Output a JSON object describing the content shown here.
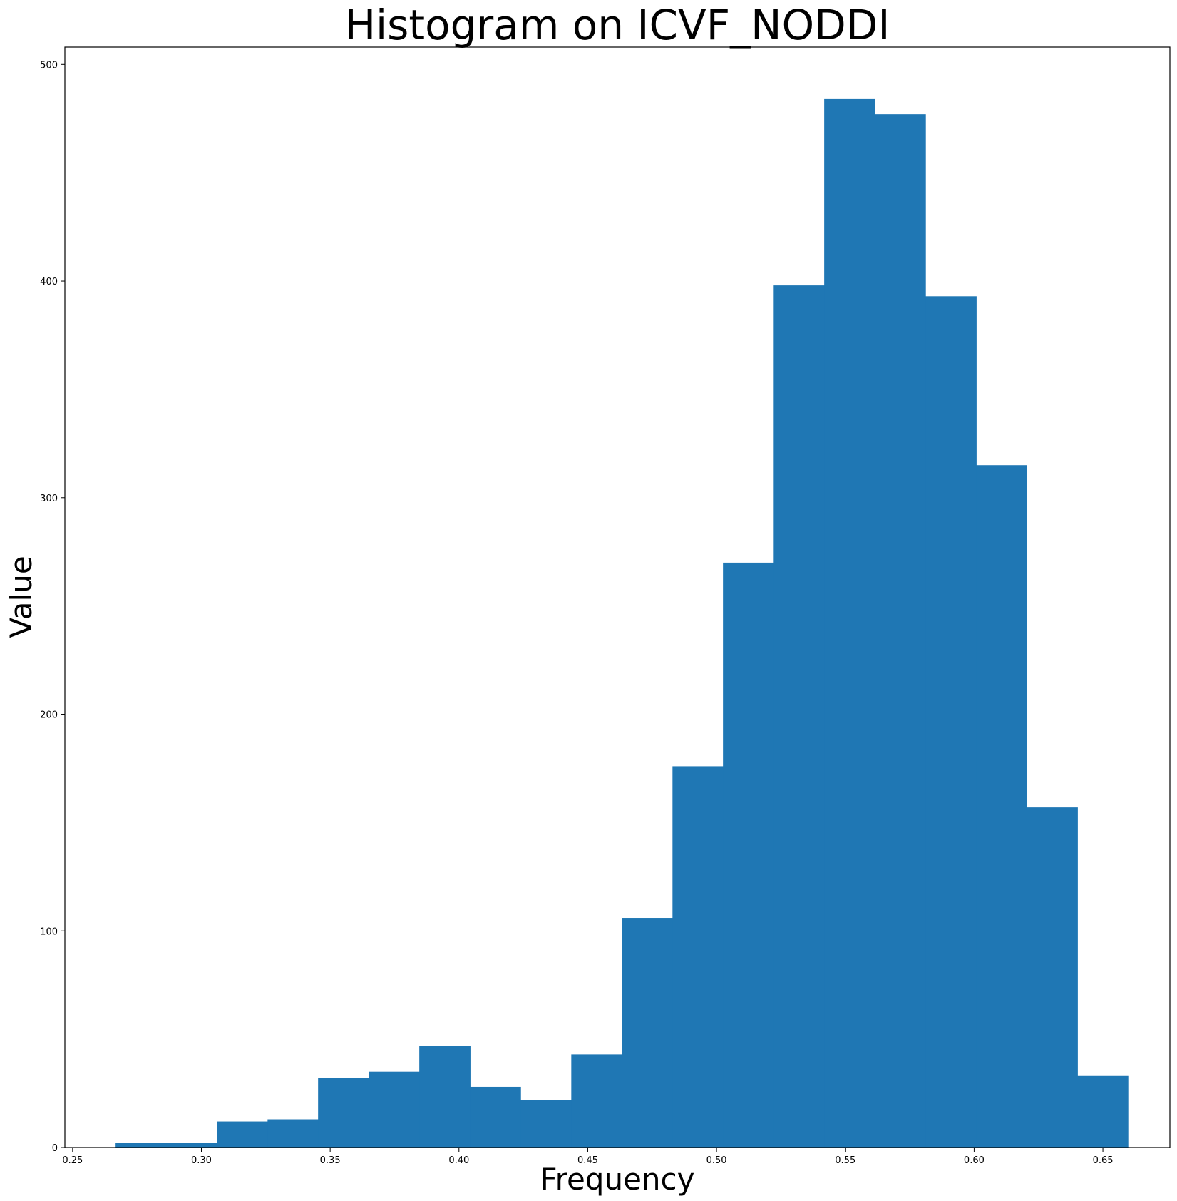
{
  "chart_data": {
    "type": "bar",
    "title": "Histogram on ICVF_NODDI",
    "xlabel": "Frequency",
    "ylabel": "Value",
    "xlim": [
      0.247,
      0.676
    ],
    "ylim": [
      0,
      508
    ],
    "x_ticks": [
      "0.25",
      "0.30",
      "0.35",
      "0.40",
      "0.45",
      "0.50",
      "0.55",
      "0.60",
      "0.65"
    ],
    "y_ticks": [
      "0",
      "100",
      "200",
      "300",
      "400",
      "500"
    ],
    "bar_color": "#1f77b4",
    "bin_edges": [
      0.2667,
      0.2864,
      0.306,
      0.3257,
      0.3453,
      0.365,
      0.3846,
      0.4043,
      0.4239,
      0.4436,
      0.4632,
      0.4829,
      0.5025,
      0.5222,
      0.5418,
      0.5615,
      0.5811,
      0.6008,
      0.6204,
      0.6401,
      0.6597
    ],
    "counts": [
      2,
      2,
      12,
      13,
      32,
      35,
      47,
      28,
      22,
      43,
      106,
      176,
      270,
      398,
      484,
      477,
      393,
      315,
      157,
      33
    ]
  }
}
